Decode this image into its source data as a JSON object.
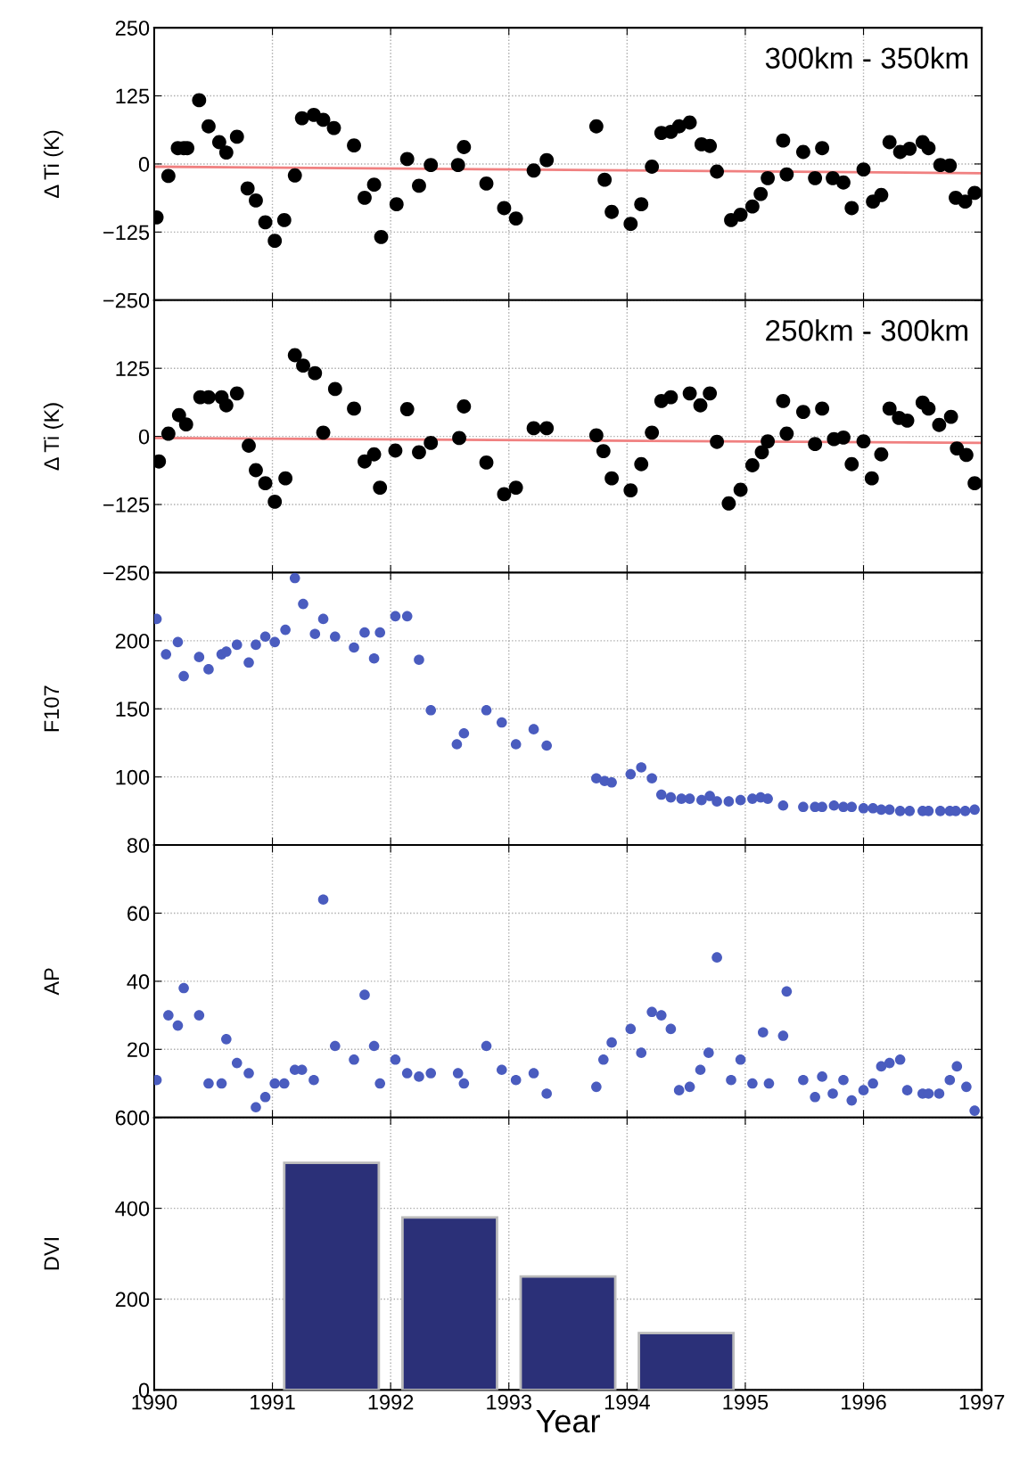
{
  "chart_data": [
    {
      "type": "scatter",
      "ylabel": "Δ Ti (K)",
      "annotations": [
        "300km - 350km"
      ],
      "xlim": [
        1990,
        1997
      ],
      "xticks": [
        1990,
        1991,
        1992,
        1993,
        1994,
        1995,
        1996,
        1997
      ],
      "ylim": [
        -250,
        250
      ],
      "yticks": [
        250,
        125,
        0,
        {
          "value": -125,
          "label": "−125"
        },
        {
          "value": -250,
          "label": "−250"
        }
      ],
      "grid": true,
      "marker": "circle",
      "tick_labels": "y",
      "series": [
        {
          "color": "#000000",
          "x": [
            1990.02,
            1990.12,
            1990.2,
            1990.25,
            1990.28,
            1990.38,
            1990.46,
            1990.55,
            1990.61,
            1990.7,
            1990.79,
            1990.86,
            1990.94,
            1991.02,
            1991.1,
            1991.19,
            1991.25,
            1991.35,
            1991.43,
            1991.52,
            1991.69,
            1991.78,
            1991.86,
            1991.92,
            1992.05,
            1992.14,
            1992.24,
            1992.34,
            1992.57,
            1992.62,
            1992.81,
            1992.96,
            1993.06,
            1993.21,
            1993.32,
            1993.74,
            1993.81,
            1993.87,
            1994.03,
            1994.12,
            1994.21,
            1994.29,
            1994.37,
            1994.44,
            1994.53,
            1994.63,
            1994.7,
            1994.76,
            1994.88,
            1994.96,
            1995.06,
            1995.13,
            1995.19,
            1995.32,
            1995.35,
            1995.49,
            1995.59,
            1995.65,
            1995.74,
            1995.83,
            1995.9,
            1996.0,
            1996.08,
            1996.15,
            1996.22,
            1996.31,
            1996.39,
            1996.5,
            1996.55,
            1996.65,
            1996.73,
            1996.78,
            1996.86,
            1996.94
          ],
          "values": [
            -98,
            -22,
            29,
            29,
            29,
            117,
            69,
            40,
            21,
            50,
            -45,
            -67,
            -107,
            -141,
            -103,
            -21,
            84,
            90,
            81,
            66,
            34,
            -62,
            -38,
            -134,
            -74,
            9,
            -40,
            -2,
            -2,
            31,
            -36,
            -81,
            -100,
            -12,
            7,
            69,
            -29,
            -88,
            -110,
            -74,
            -5,
            57,
            59,
            69,
            76,
            36,
            33,
            -14,
            -103,
            -93,
            -78,
            -55,
            -26,
            43,
            -19,
            22,
            -26,
            29,
            -26,
            -34,
            -81,
            -10,
            -69,
            -57,
            40,
            22,
            28,
            40,
            29,
            -2,
            -3,
            -62,
            -69,
            -53
          ]
        },
        {
          "type": "line",
          "color": "#f08080",
          "x": [
            1990,
            1997
          ],
          "values": [
            -5,
            -17
          ],
          "marker": "none"
        }
      ]
    },
    {
      "type": "scatter",
      "ylabel": "Δ Ti (K)",
      "annotations": [
        "250km - 300km"
      ],
      "xlim": [
        1990,
        1997
      ],
      "xticks": [
        1990,
        1991,
        1992,
        1993,
        1994,
        1995,
        1996,
        1997
      ],
      "ylim": [
        -250,
        250
      ],
      "yticks": [
        {
          "value": 250,
          "label": null
        },
        125,
        0,
        {
          "value": -125,
          "label": "−125"
        },
        {
          "value": -250,
          "label": "−250"
        }
      ],
      "grid": true,
      "marker": "circle",
      "tick_labels": "y",
      "series": [
        {
          "color": "#000000",
          "x": [
            1990.04,
            1990.12,
            1990.21,
            1990.27,
            1990.39,
            1990.46,
            1990.57,
            1990.61,
            1990.7,
            1990.8,
            1990.86,
            1990.94,
            1991.02,
            1991.11,
            1991.19,
            1991.26,
            1991.36,
            1991.43,
            1991.53,
            1991.69,
            1991.78,
            1991.86,
            1991.91,
            1992.04,
            1992.14,
            1992.24,
            1992.34,
            1992.58,
            1992.62,
            1992.81,
            1992.96,
            1993.06,
            1993.21,
            1993.32,
            1993.74,
            1993.8,
            1993.87,
            1994.03,
            1994.12,
            1994.21,
            1994.29,
            1994.37,
            1994.53,
            1994.62,
            1994.7,
            1994.76,
            1994.86,
            1994.96,
            1995.06,
            1995.14,
            1995.19,
            1995.32,
            1995.35,
            1995.49,
            1995.59,
            1995.65,
            1995.75,
            1995.83,
            1995.9,
            1996.0,
            1996.07,
            1996.15,
            1996.22,
            1996.3,
            1996.37,
            1996.5,
            1996.55,
            1996.64,
            1996.74,
            1996.79,
            1996.87,
            1996.94
          ],
          "values": [
            -46,
            5,
            39,
            22,
            72,
            72,
            72,
            57,
            79,
            -17,
            -62,
            -86,
            -120,
            -77,
            149,
            130,
            116,
            7,
            87,
            51,
            -46,
            -33,
            -94,
            -26,
            50,
            -29,
            -12,
            -3,
            55,
            -48,
            -106,
            -94,
            15,
            15,
            2,
            -27,
            -77,
            -99,
            -51,
            7,
            65,
            72,
            79,
            57,
            79,
            -10,
            -123,
            -98,
            -53,
            -29,
            -9,
            65,
            5,
            45,
            -14,
            51,
            -5,
            -2,
            -51,
            -9,
            -77,
            -33,
            51,
            34,
            29,
            62,
            51,
            21,
            36,
            -22,
            -34,
            -86
          ]
        },
        {
          "type": "line",
          "color": "#f08080",
          "x": [
            1990,
            1997
          ],
          "values": [
            -3,
            -12
          ],
          "marker": "none"
        }
      ]
    },
    {
      "type": "scatter",
      "ylabel": "F107",
      "xlim": [
        1990,
        1997
      ],
      "xticks": [
        1990,
        1991,
        1992,
        1993,
        1994,
        1995,
        1996,
        1997
      ],
      "ylim": [
        50,
        250
      ],
      "yticks": [
        {
          "value": 250,
          "label": null
        },
        200,
        150,
        100,
        {
          "value": 50,
          "label": null
        }
      ],
      "grid": true,
      "marker": "circle",
      "tick_labels": "y",
      "series": [
        {
          "color": "#4a5cbf",
          "x": [
            1990.02,
            1990.1,
            1990.2,
            1990.25,
            1990.38,
            1990.46,
            1990.57,
            1990.61,
            1990.7,
            1990.8,
            1990.86,
            1990.94,
            1991.02,
            1991.11,
            1991.19,
            1991.26,
            1991.36,
            1991.43,
            1991.53,
            1991.69,
            1991.78,
            1991.86,
            1991.91,
            1992.04,
            1992.14,
            1992.24,
            1992.34,
            1992.56,
            1992.62,
            1992.81,
            1992.94,
            1993.06,
            1993.21,
            1993.32,
            1993.74,
            1993.81,
            1993.87,
            1994.03,
            1994.12,
            1994.21,
            1994.29,
            1994.37,
            1994.46,
            1994.53,
            1994.63,
            1994.7,
            1994.76,
            1994.86,
            1994.96,
            1995.06,
            1995.13,
            1995.19,
            1995.32,
            1995.49,
            1995.59,
            1995.65,
            1995.75,
            1995.83,
            1995.9,
            1996.0,
            1996.08,
            1996.15,
            1996.22,
            1996.31,
            1996.39,
            1996.5,
            1996.55,
            1996.65,
            1996.73,
            1996.78,
            1996.86,
            1996.94
          ],
          "values": [
            216,
            190,
            199,
            174,
            188,
            179,
            190,
            192,
            197,
            184,
            197,
            203,
            199,
            208,
            246,
            227,
            205,
            216,
            203,
            195,
            206,
            187,
            206,
            218,
            218,
            186,
            149,
            124,
            132,
            149,
            140,
            124,
            135,
            123,
            99,
            97,
            96,
            102,
            107,
            99,
            87,
            85,
            84,
            84,
            83,
            86,
            82,
            82,
            83,
            84,
            85,
            84,
            79,
            78,
            78,
            78,
            79,
            78,
            78,
            77,
            77,
            76,
            76,
            75,
            75,
            75,
            75,
            75,
            75,
            75,
            75,
            76
          ]
        }
      ]
    },
    {
      "type": "scatter",
      "ylabel": "AP",
      "xlim": [
        1990,
        1997
      ],
      "xticks": [
        1990,
        1991,
        1992,
        1993,
        1994,
        1995,
        1996,
        1997
      ],
      "ylim": [
        0,
        80
      ],
      "yticks": [
        80,
        60,
        40,
        20,
        {
          "value": 0,
          "label": null
        }
      ],
      "grid": true,
      "marker": "circle",
      "tick_labels": "y",
      "series": [
        {
          "color": "#4a5cbf",
          "x": [
            1990.02,
            1990.12,
            1990.2,
            1990.25,
            1990.38,
            1990.46,
            1990.57,
            1990.61,
            1990.7,
            1990.8,
            1990.86,
            1990.94,
            1991.02,
            1991.1,
            1991.19,
            1991.25,
            1991.35,
            1991.43,
            1991.53,
            1991.69,
            1991.78,
            1991.86,
            1991.91,
            1992.04,
            1992.14,
            1992.24,
            1992.34,
            1992.57,
            1992.62,
            1992.81,
            1992.94,
            1993.06,
            1993.21,
            1993.32,
            1993.74,
            1993.8,
            1993.87,
            1994.03,
            1994.12,
            1994.21,
            1994.29,
            1994.37,
            1994.44,
            1994.53,
            1994.62,
            1994.69,
            1994.76,
            1994.88,
            1994.96,
            1995.06,
            1995.15,
            1995.2,
            1995.32,
            1995.35,
            1995.49,
            1995.59,
            1995.65,
            1995.74,
            1995.83,
            1995.9,
            1996.0,
            1996.08,
            1996.15,
            1996.22,
            1996.31,
            1996.37,
            1996.5,
            1996.55,
            1996.64,
            1996.73,
            1996.79,
            1996.87,
            1996.94
          ],
          "values": [
            11,
            30,
            27,
            38,
            30,
            10,
            10,
            23,
            16,
            13,
            3,
            6,
            10,
            10,
            14,
            14,
            11,
            64,
            21,
            17,
            36,
            21,
            10,
            17,
            13,
            12,
            13,
            13,
            10,
            21,
            14,
            11,
            13,
            7,
            9,
            17,
            22,
            26,
            19,
            31,
            30,
            26,
            8,
            9,
            14,
            19,
            47,
            11,
            17,
            10,
            25,
            10,
            24,
            37,
            11,
            6,
            12,
            7,
            11,
            5,
            8,
            10,
            15,
            16,
            17,
            8,
            7,
            7,
            7,
            11,
            15,
            9,
            2
          ]
        }
      ]
    },
    {
      "type": "bar",
      "ylabel": "DVI",
      "xlabel": "Year",
      "xlim": [
        1990,
        1997
      ],
      "xticks": [
        1990,
        1991,
        1992,
        1993,
        1994,
        1995,
        1996,
        1997
      ],
      "ylim": [
        0,
        600
      ],
      "yticks": [
        600,
        400,
        200,
        0
      ],
      "grid": true,
      "series": [
        {
          "color": "#2b3078",
          "x": [
            1991.5,
            1992.5,
            1993.5,
            1994.5
          ],
          "values": [
            500,
            380,
            250,
            125
          ]
        }
      ]
    }
  ]
}
